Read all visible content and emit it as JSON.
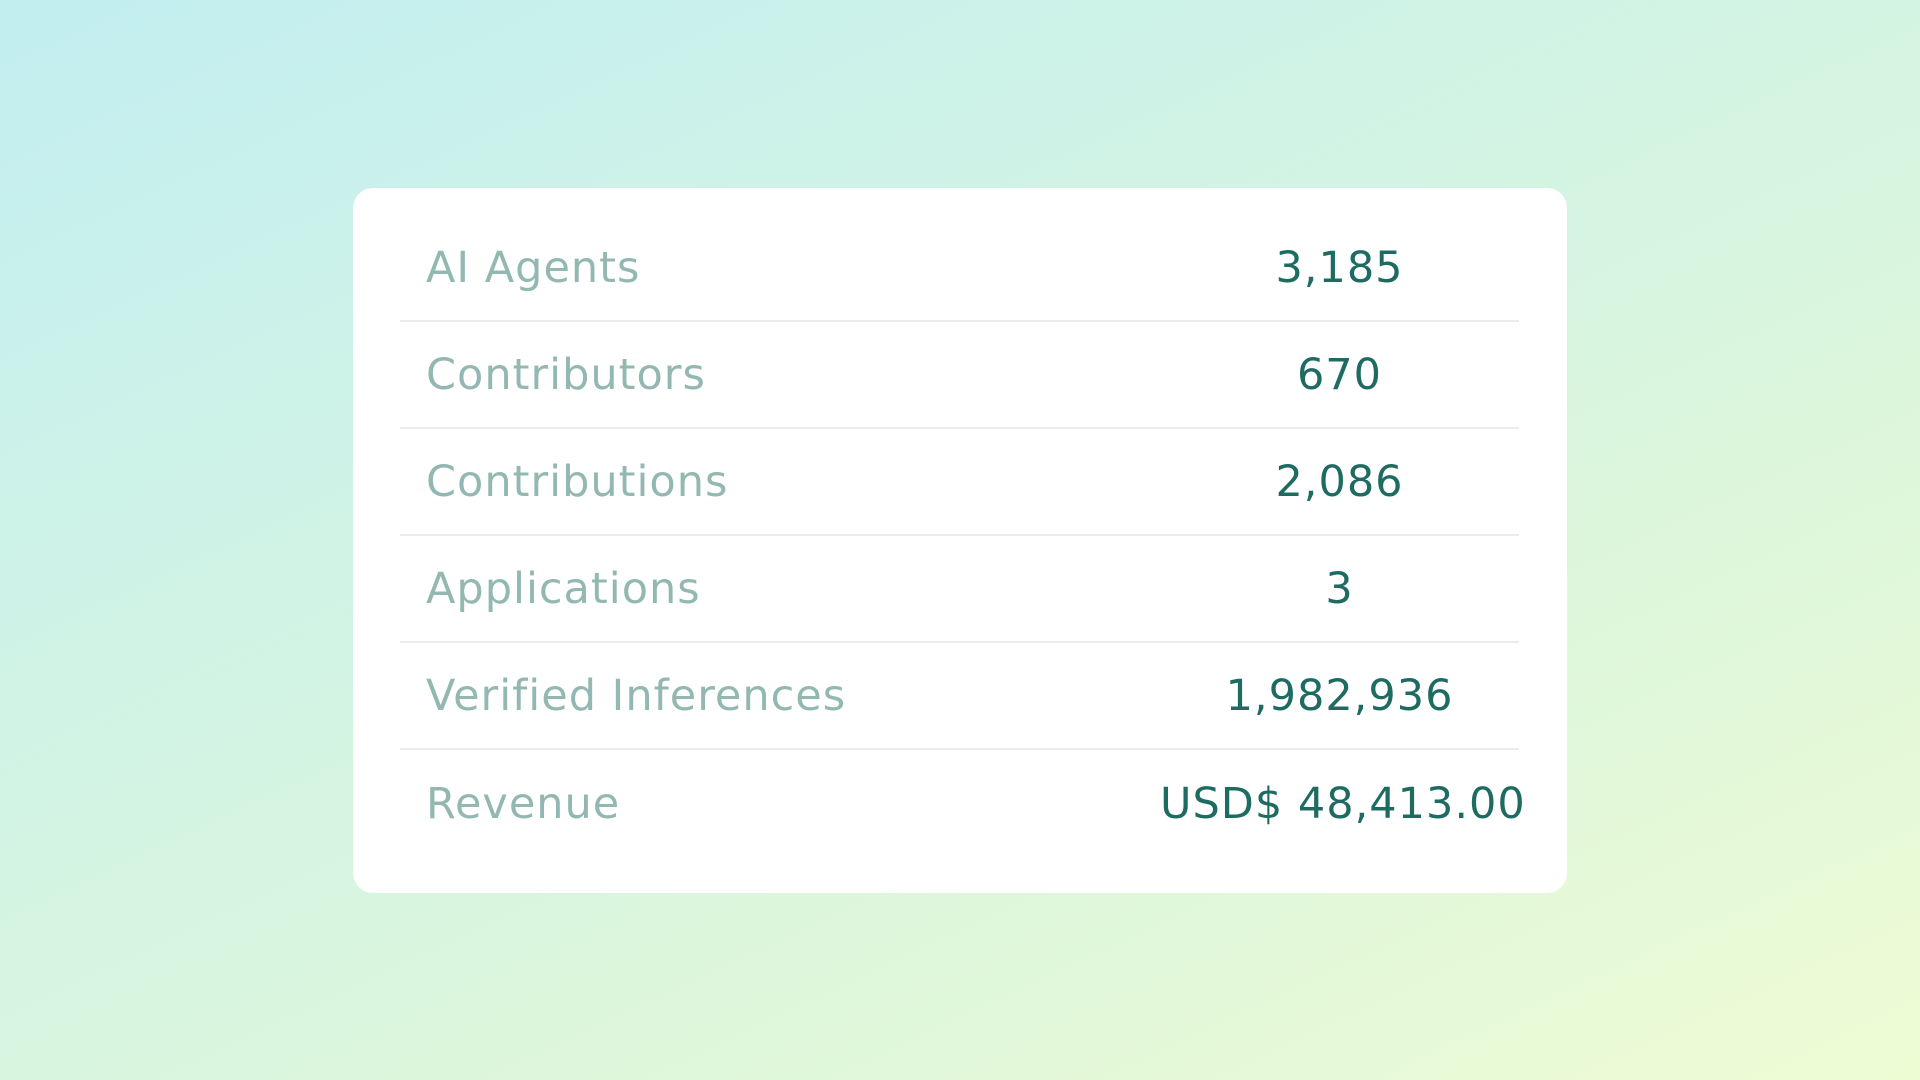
{
  "stats": {
    "rows": [
      {
        "label": "AI Agents",
        "value": "3,185"
      },
      {
        "label": "Contributors",
        "value": "670"
      },
      {
        "label": "Contributions",
        "value": "2,086"
      },
      {
        "label": "Applications",
        "value": "3"
      },
      {
        "label": "Verified Inferences",
        "value": "1,982,936"
      },
      {
        "label": "Revenue",
        "value": "USD$ 48,413.00"
      }
    ]
  },
  "colors": {
    "label": "#93b8b2",
    "value": "#1e6b61",
    "card": "#ffffff",
    "divider": "#ececec"
  }
}
